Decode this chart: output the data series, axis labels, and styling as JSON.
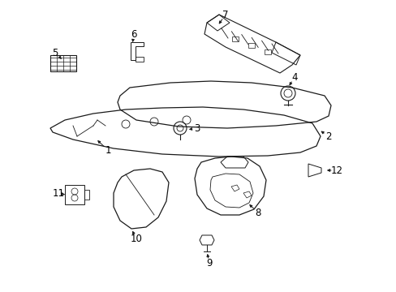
{
  "background_color": "#ffffff",
  "line_color": "#1a1a1a",
  "text_color": "#000000",
  "figsize": [
    4.89,
    3.6
  ],
  "dpi": 100
}
